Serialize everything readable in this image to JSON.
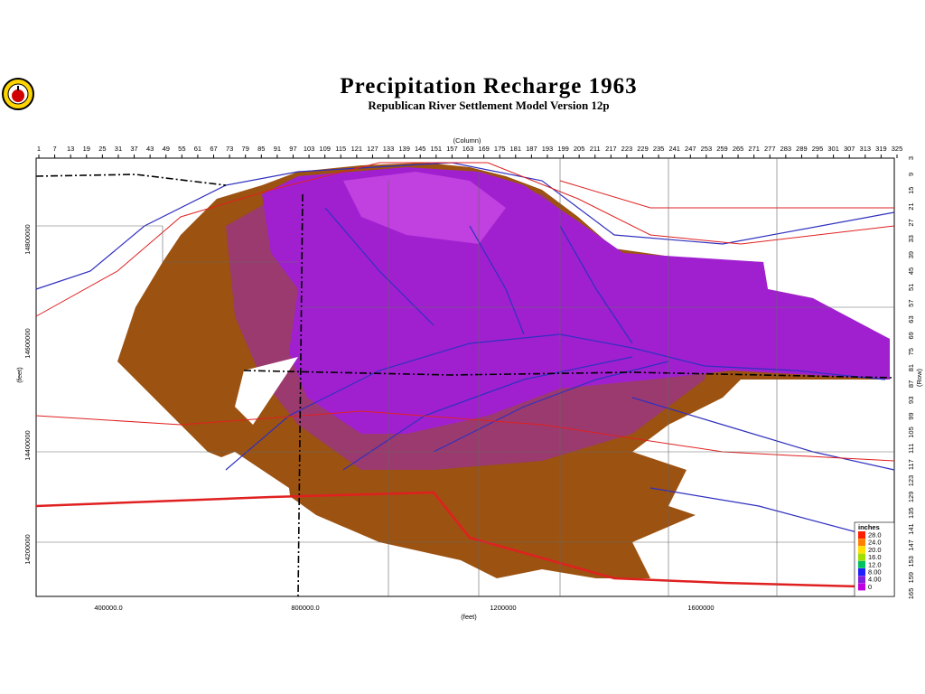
{
  "header": {
    "title": "Precipitation Recharge 1963",
    "subtitle": "Republican River Settlement Model Version 12p"
  },
  "axes": {
    "column_label": "(Column)",
    "row_label": "(Row)",
    "x_label": "(feet)",
    "y_label": "(feet)",
    "columns": [
      "1",
      "7",
      "13",
      "19",
      "25",
      "31",
      "37",
      "43",
      "49",
      "55",
      "61",
      "67",
      "73",
      "79",
      "85",
      "91",
      "97",
      "103",
      "109",
      "115",
      "121",
      "127",
      "133",
      "139",
      "145",
      "151",
      "157",
      "163",
      "169",
      "175",
      "181",
      "187",
      "193",
      "199",
      "205",
      "211",
      "217",
      "223",
      "229",
      "235",
      "241",
      "247",
      "253",
      "259",
      "265",
      "271",
      "277",
      "283",
      "289",
      "295",
      "301",
      "307",
      "313",
      "319",
      "325"
    ],
    "rows": [
      "3",
      "9",
      "15",
      "21",
      "27",
      "33",
      "39",
      "45",
      "51",
      "57",
      "63",
      "69",
      "75",
      "81",
      "87",
      "93",
      "99",
      "105",
      "111",
      "117",
      "123",
      "129",
      "135",
      "141",
      "147",
      "153",
      "159",
      "165"
    ],
    "x_feet": [
      "400000.0",
      "800000.0",
      "1200000",
      "1600000"
    ],
    "y_feet": [
      "14800000",
      "14600000",
      "14400000",
      "14200000"
    ]
  },
  "legend": {
    "title": "inches",
    "labels": [
      "28.0",
      "24.0",
      "20.0",
      "16.0",
      "12.0",
      "8.00",
      "4.00",
      "0"
    ]
  }
}
